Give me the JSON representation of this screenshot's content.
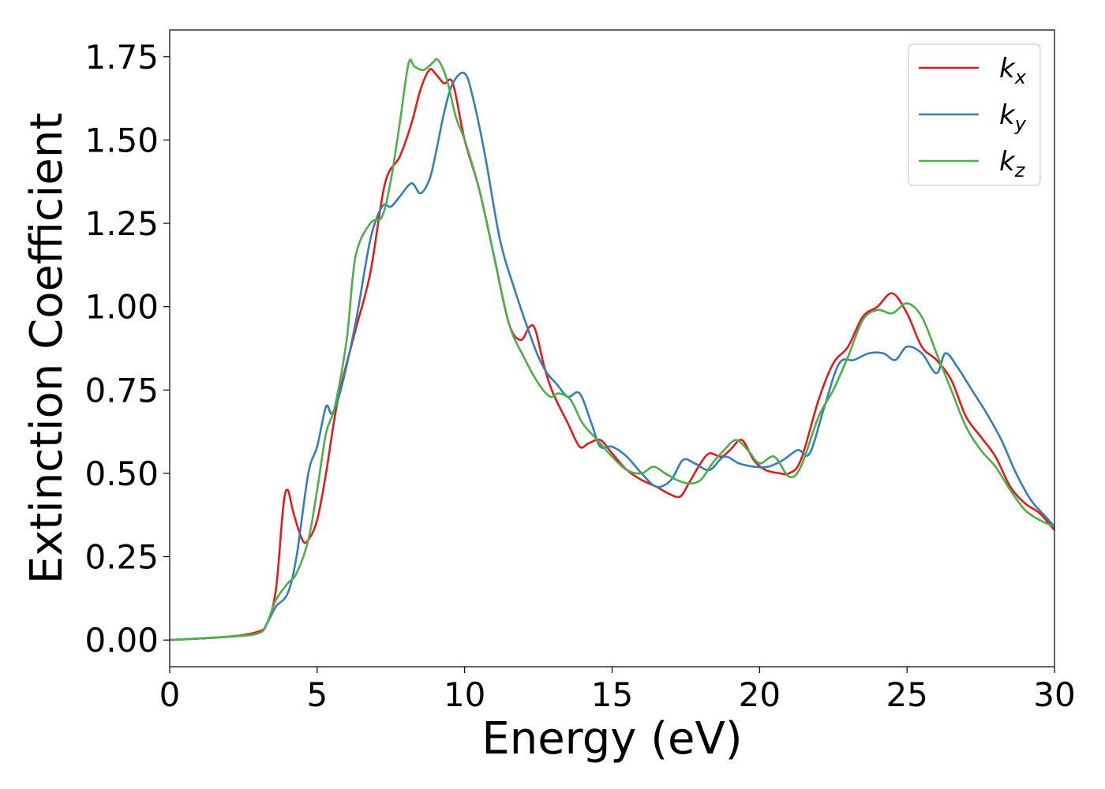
{
  "chart_data": {
    "type": "line",
    "xlabel": "Energy (eV)",
    "ylabel": "Extinction Coefficient",
    "xlim": [
      0,
      30
    ],
    "ylim": [
      -0.08,
      1.83
    ],
    "xticks": [
      0,
      5,
      10,
      15,
      20,
      25,
      30
    ],
    "xtick_labels": [
      "0",
      "5",
      "10",
      "15",
      "20",
      "25",
      "30"
    ],
    "yticks": [
      0.0,
      0.25,
      0.5,
      0.75,
      1.0,
      1.25,
      1.5,
      1.75
    ],
    "ytick_labels": [
      "0.00",
      "0.25",
      "0.50",
      "0.75",
      "1.00",
      "1.25",
      "1.50",
      "1.75"
    ],
    "grid": false,
    "legend_position": "top-right",
    "series": [
      {
        "name": "k_x",
        "label_main": "k",
        "label_sub": "x",
        "color": "#e41a1c",
        "x": [
          0,
          2,
          3,
          3.3,
          3.6,
          3.85,
          4.0,
          4.2,
          4.5,
          4.7,
          5.0,
          5.3,
          5.7,
          6.3,
          6.8,
          7.3,
          7.8,
          8.2,
          8.5,
          8.8,
          9.0,
          9.3,
          9.6,
          10.0,
          10.5,
          11.0,
          11.5,
          11.9,
          12.2,
          12.4,
          12.7,
          13.0,
          13.5,
          13.9,
          14.2,
          14.6,
          15.0,
          15.5,
          16.0,
          16.5,
          16.9,
          17.3,
          17.6,
          18.0,
          18.3,
          18.7,
          19.0,
          19.4,
          19.8,
          20.2,
          20.7,
          21.0,
          21.4,
          22.0,
          22.5,
          23.0,
          23.5,
          24.0,
          24.5,
          25.0,
          25.5,
          26.0,
          26.5,
          27.0,
          27.5,
          28.0,
          28.5,
          29.0,
          29.5,
          30.0
        ],
        "y": [
          0.0,
          0.01,
          0.025,
          0.05,
          0.15,
          0.4,
          0.45,
          0.38,
          0.3,
          0.3,
          0.36,
          0.5,
          0.72,
          0.93,
          1.1,
          1.37,
          1.45,
          1.55,
          1.65,
          1.71,
          1.7,
          1.67,
          1.67,
          1.5,
          1.35,
          1.15,
          0.95,
          0.9,
          0.94,
          0.93,
          0.82,
          0.74,
          0.65,
          0.58,
          0.59,
          0.6,
          0.56,
          0.51,
          0.48,
          0.46,
          0.44,
          0.43,
          0.47,
          0.53,
          0.56,
          0.55,
          0.57,
          0.6,
          0.54,
          0.51,
          0.5,
          0.5,
          0.54,
          0.72,
          0.83,
          0.88,
          0.97,
          1.0,
          1.04,
          0.98,
          0.88,
          0.84,
          0.78,
          0.67,
          0.61,
          0.55,
          0.46,
          0.41,
          0.38,
          0.33
        ]
      },
      {
        "name": "k_y",
        "label_main": "k",
        "label_sub": "y",
        "color": "#377eb8",
        "x": [
          0,
          2,
          3,
          3.3,
          3.6,
          4.0,
          4.3,
          4.7,
          5.0,
          5.3,
          5.5,
          5.8,
          6.3,
          6.8,
          7.2,
          7.5,
          7.8,
          8.2,
          8.5,
          8.8,
          9.0,
          9.3,
          9.6,
          10.0,
          10.3,
          10.7,
          11.2,
          11.7,
          12.2,
          12.5,
          12.8,
          13.1,
          13.5,
          13.9,
          14.3,
          14.6,
          15.0,
          15.5,
          16.0,
          16.5,
          17.0,
          17.4,
          17.8,
          18.3,
          18.8,
          19.3,
          19.8,
          20.3,
          20.8,
          21.3,
          21.7,
          22.2,
          22.7,
          23.2,
          23.7,
          24.2,
          24.6,
          25.0,
          25.5,
          26.0,
          26.3,
          26.7,
          27.2,
          27.7,
          28.2,
          28.7,
          29.2,
          29.7,
          30.0
        ],
        "y": [
          0.0,
          0.01,
          0.02,
          0.05,
          0.1,
          0.14,
          0.25,
          0.5,
          0.58,
          0.7,
          0.68,
          0.75,
          0.95,
          1.2,
          1.3,
          1.3,
          1.33,
          1.37,
          1.34,
          1.38,
          1.45,
          1.58,
          1.67,
          1.7,
          1.62,
          1.45,
          1.2,
          1.05,
          0.92,
          0.85,
          0.8,
          0.77,
          0.73,
          0.74,
          0.65,
          0.58,
          0.58,
          0.55,
          0.5,
          0.46,
          0.48,
          0.54,
          0.53,
          0.51,
          0.55,
          0.53,
          0.52,
          0.52,
          0.54,
          0.57,
          0.56,
          0.7,
          0.83,
          0.84,
          0.86,
          0.86,
          0.84,
          0.88,
          0.86,
          0.8,
          0.86,
          0.82,
          0.75,
          0.68,
          0.6,
          0.5,
          0.42,
          0.37,
          0.34
        ]
      },
      {
        "name": "k_z",
        "label_main": "k",
        "label_sub": "z",
        "color": "#4daf4a",
        "x": [
          0,
          2,
          3,
          3.3,
          3.6,
          4.0,
          4.3,
          4.7,
          5.0,
          5.3,
          5.6,
          6.0,
          6.3,
          6.8,
          7.2,
          7.5,
          7.8,
          8.1,
          8.3,
          8.6,
          8.9,
          9.1,
          9.4,
          9.7,
          10.0,
          10.5,
          11.0,
          11.5,
          12.0,
          12.5,
          12.9,
          13.2,
          13.6,
          14.0,
          14.5,
          15.0,
          15.5,
          16.0,
          16.4,
          16.8,
          17.2,
          17.6,
          18.0,
          18.4,
          18.8,
          19.2,
          19.6,
          20.0,
          20.5,
          21.0,
          21.4,
          22.0,
          22.5,
          23.0,
          23.5,
          24.0,
          24.5,
          25.0,
          25.5,
          26.0,
          26.5,
          27.0,
          27.5,
          28.0,
          28.5,
          29.0,
          29.5,
          30.0
        ],
        "y": [
          0.0,
          0.01,
          0.02,
          0.05,
          0.12,
          0.17,
          0.2,
          0.3,
          0.45,
          0.62,
          0.7,
          0.9,
          1.15,
          1.25,
          1.27,
          1.38,
          1.55,
          1.73,
          1.72,
          1.71,
          1.73,
          1.74,
          1.68,
          1.57,
          1.5,
          1.35,
          1.15,
          0.95,
          0.85,
          0.77,
          0.73,
          0.74,
          0.72,
          0.65,
          0.6,
          0.55,
          0.51,
          0.5,
          0.52,
          0.5,
          0.48,
          0.47,
          0.48,
          0.53,
          0.57,
          0.6,
          0.57,
          0.53,
          0.55,
          0.49,
          0.52,
          0.67,
          0.75,
          0.85,
          0.96,
          0.99,
          0.98,
          1.01,
          0.97,
          0.86,
          0.75,
          0.64,
          0.57,
          0.52,
          0.45,
          0.39,
          0.36,
          0.34
        ]
      }
    ]
  }
}
